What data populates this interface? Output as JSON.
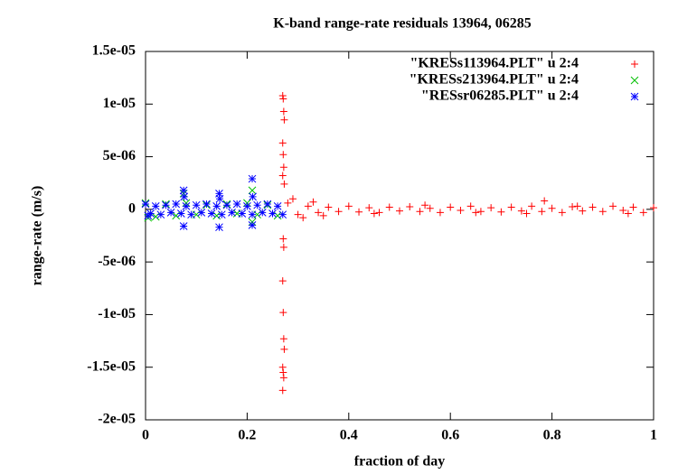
{
  "chart_data": {
    "type": "scatter",
    "title": "K-band range-rate residuals 13964, 06285",
    "x_label": "fraction of day",
    "y_label": "range-rate (m/s)",
    "xlim": [
      0,
      1
    ],
    "xticks": [
      0,
      0.2,
      0.4,
      0.6,
      0.8,
      1
    ],
    "ylim": [
      -2e-05,
      1.5e-05
    ],
    "yticks": [
      {
        "value": 1.5e-05,
        "label": "1.5e-05"
      },
      {
        "value": 1e-05,
        "label": "1e-05"
      },
      {
        "value": 5e-06,
        "label": "5e-06"
      },
      0,
      {
        "value": -5e-06,
        "label": "-5e-06"
      },
      {
        "value": -1e-05,
        "label": "-1e-05"
      },
      {
        "value": -1.5e-05,
        "label": "-1.5e-05"
      },
      {
        "value": -2e-05,
        "label": "-2e-05"
      }
    ],
    "legend": "top-right",
    "series": [
      {
        "name": "\"KRESs113964.PLT\" u 2:4",
        "color": "#ff0000",
        "marker": "plus",
        "x": [
          0.27,
          0.271,
          0.272,
          0.273,
          0.27,
          0.271,
          0.272,
          0.27,
          0.273,
          0.271,
          0.272,
          0.27,
          0.271,
          0.272,
          0.273,
          0.27,
          0.271,
          0.272,
          0.27,
          0.28,
          0.3,
          0.32,
          0.34,
          0.36,
          0.38,
          0.4,
          0.42,
          0.44,
          0.46,
          0.48,
          0.5,
          0.52,
          0.54,
          0.56,
          0.58,
          0.6,
          0.62,
          0.64,
          0.66,
          0.68,
          0.7,
          0.72,
          0.74,
          0.76,
          0.78,
          0.8,
          0.82,
          0.84,
          0.86,
          0.88,
          0.9,
          0.92,
          0.94,
          0.96,
          0.98,
          1,
          0.29,
          0.31,
          0.33,
          0.35,
          0.45,
          0.55,
          0.65,
          0.75,
          0.785,
          0.85,
          0.95
        ],
        "values": [
          1.08e-05,
          1.05e-05,
          9.3e-06,
          8.5e-06,
          6.3e-06,
          5.2e-06,
          4e-06,
          3.2e-06,
          2.4e-06,
          -2.8e-06,
          -3.6e-06,
          -6.8e-06,
          -9.8e-06,
          -1.23e-05,
          -1.33e-05,
          -1.5e-05,
          -1.55e-05,
          -1.6e-05,
          -1.72e-05,
          6e-07,
          -5e-07,
          3e-07,
          -3e-07,
          2e-07,
          -2e-07,
          3e-07,
          -2.5e-07,
          1.5e-07,
          -3e-07,
          2e-07,
          -1.5e-07,
          2.5e-07,
          -2e-07,
          1e-07,
          -3e-07,
          2e-07,
          -1e-07,
          3e-07,
          -2e-07,
          1.5e-07,
          -2.5e-07,
          2e-07,
          -1.5e-07,
          3e-07,
          -2e-07,
          1e-07,
          -3e-07,
          2.5e-07,
          -1.5e-07,
          2e-07,
          -2e-07,
          3e-07,
          -1e-07,
          2e-07,
          -3e-07,
          1.5e-07,
          1e-06,
          -8e-07,
          7e-07,
          -6e-07,
          -4e-07,
          4e-07,
          -3e-07,
          -4e-07,
          8e-07,
          3e-07,
          -4e-07
        ]
      },
      {
        "name": "\"KRESs213964.PLT\" u 2:4",
        "color": "#00c000",
        "marker": "cross",
        "x": [
          0,
          0.02,
          0.04,
          0.06,
          0.08,
          0.1,
          0.12,
          0.14,
          0.16,
          0.18,
          0.2,
          0.22,
          0.24,
          0.26,
          0.21,
          0.21,
          0.075,
          0.005
        ],
        "values": [
          6e-07,
          -7e-07,
          5e-07,
          -6e-07,
          6e-07,
          -5e-07,
          4e-07,
          -6e-07,
          5e-07,
          -4e-07,
          6e-07,
          -5e-07,
          4e-07,
          -6e-07,
          1.8e-06,
          -1.2e-06,
          1.5e-06,
          -8e-07
        ]
      },
      {
        "name": "\"RESsr06285.PLT\" u 2:4",
        "color": "#0000ff",
        "marker": "star",
        "x": [
          0,
          0.01,
          0.02,
          0.03,
          0.04,
          0.05,
          0.06,
          0.07,
          0.08,
          0.09,
          0.1,
          0.11,
          0.12,
          0.13,
          0.14,
          0.15,
          0.16,
          0.17,
          0.18,
          0.19,
          0.2,
          0.21,
          0.22,
          0.23,
          0.24,
          0.25,
          0.26,
          0.27,
          0.075,
          0.075,
          0.076,
          0.145,
          0.145,
          0.146,
          0.21,
          0.21,
          0.211,
          0.005
        ],
        "values": [
          5e-07,
          -4e-07,
          3e-07,
          -5e-07,
          4e-07,
          -3e-07,
          5e-07,
          -4e-07,
          3e-07,
          -5e-07,
          4e-07,
          -3e-07,
          5e-07,
          -4e-07,
          3e-07,
          -5e-07,
          4e-07,
          -3e-07,
          5e-07,
          -4e-07,
          3e-07,
          -5e-07,
          4e-07,
          -3e-07,
          5e-07,
          -4e-07,
          3e-07,
          -5e-07,
          1.8e-06,
          -1.6e-06,
          1.2e-06,
          1.5e-06,
          -1.7e-06,
          1e-06,
          2.9e-06,
          -1.5e-06,
          1.2e-06,
          -6e-07
        ]
      }
    ]
  }
}
